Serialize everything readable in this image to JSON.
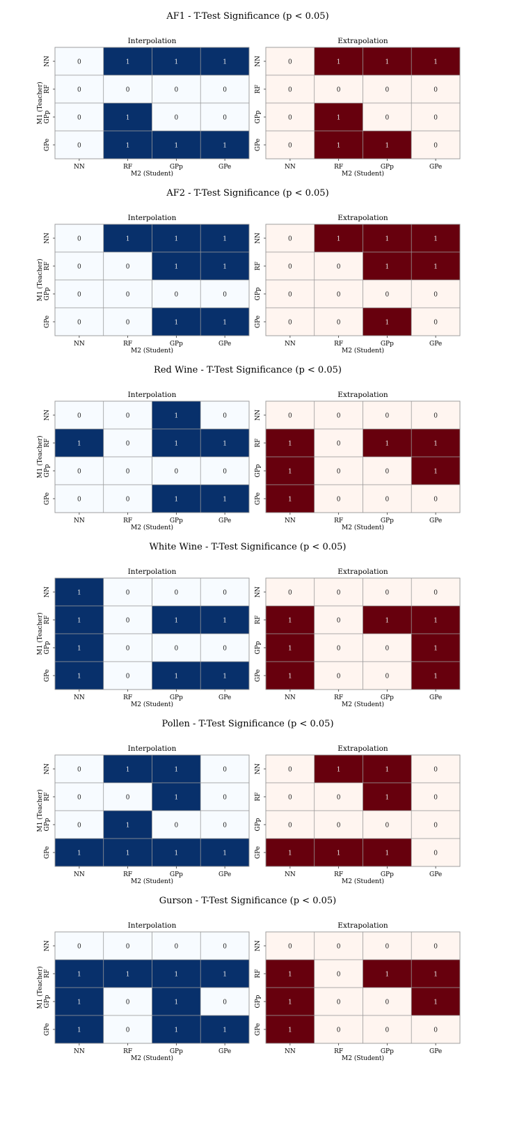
{
  "chart_data": [
    {
      "type": "heatmap",
      "title": "AF1 - T-Test Significance (p < 0.05)",
      "xlabel": "M2 (Student)",
      "ylabel": "M1 (Teacher)",
      "categories": [
        "NN",
        "RF",
        "GPp",
        "GPe"
      ],
      "panels": [
        {
          "title": "Interpolation",
          "colormap": "Blues",
          "values": [
            [
              0,
              1,
              1,
              1
            ],
            [
              0,
              0,
              0,
              0
            ],
            [
              0,
              1,
              0,
              0
            ],
            [
              0,
              1,
              1,
              1
            ]
          ]
        },
        {
          "title": "Extrapolation",
          "colormap": "Reds",
          "values": [
            [
              0,
              1,
              1,
              1
            ],
            [
              0,
              0,
              0,
              0
            ],
            [
              0,
              1,
              0,
              0
            ],
            [
              0,
              1,
              1,
              0
            ]
          ]
        }
      ]
    },
    {
      "type": "heatmap",
      "title": "AF2 - T-Test Significance (p < 0.05)",
      "xlabel": "M2 (Student)",
      "ylabel": "M1 (Teacher)",
      "categories": [
        "NN",
        "RF",
        "GPp",
        "GPe"
      ],
      "panels": [
        {
          "title": "Interpolation",
          "colormap": "Blues",
          "values": [
            [
              0,
              1,
              1,
              1
            ],
            [
              0,
              0,
              1,
              1
            ],
            [
              0,
              0,
              0,
              0
            ],
            [
              0,
              0,
              1,
              1
            ]
          ]
        },
        {
          "title": "Extrapolation",
          "colormap": "Reds",
          "values": [
            [
              0,
              1,
              1,
              1
            ],
            [
              0,
              0,
              1,
              1
            ],
            [
              0,
              0,
              0,
              0
            ],
            [
              0,
              0,
              1,
              0
            ]
          ]
        }
      ]
    },
    {
      "type": "heatmap",
      "title": "Red Wine - T-Test Significance (p < 0.05)",
      "xlabel": "M2 (Student)",
      "ylabel": "M1 (Teacher)",
      "categories": [
        "NN",
        "RF",
        "GPp",
        "GPe"
      ],
      "panels": [
        {
          "title": "Interpolation",
          "colormap": "Blues",
          "values": [
            [
              0,
              0,
              1,
              0
            ],
            [
              1,
              0,
              1,
              1
            ],
            [
              0,
              0,
              0,
              0
            ],
            [
              0,
              0,
              1,
              1
            ]
          ]
        },
        {
          "title": "Extrapolation",
          "colormap": "Reds",
          "values": [
            [
              0,
              0,
              0,
              0
            ],
            [
              1,
              0,
              1,
              1
            ],
            [
              1,
              0,
              0,
              1
            ],
            [
              1,
              0,
              0,
              0
            ]
          ]
        }
      ]
    },
    {
      "type": "heatmap",
      "title": "White Wine - T-Test Significance (p < 0.05)",
      "xlabel": "M2 (Student)",
      "ylabel": "M1 (Teacher)",
      "categories": [
        "NN",
        "RF",
        "GPp",
        "GPe"
      ],
      "panels": [
        {
          "title": "Interpolation",
          "colormap": "Blues",
          "values": [
            [
              1,
              0,
              0,
              0
            ],
            [
              1,
              0,
              1,
              1
            ],
            [
              1,
              0,
              0,
              0
            ],
            [
              1,
              0,
              1,
              1
            ]
          ]
        },
        {
          "title": "Extrapolation",
          "colormap": "Reds",
          "values": [
            [
              0,
              0,
              0,
              0
            ],
            [
              1,
              0,
              1,
              1
            ],
            [
              1,
              0,
              0,
              1
            ],
            [
              1,
              0,
              0,
              1
            ]
          ]
        }
      ]
    },
    {
      "type": "heatmap",
      "title": "Pollen - T-Test Significance (p < 0.05)",
      "xlabel": "M2 (Student)",
      "ylabel": "M1 (Teacher)",
      "categories": [
        "NN",
        "RF",
        "GPp",
        "GPe"
      ],
      "panels": [
        {
          "title": "Interpolation",
          "colormap": "Blues",
          "values": [
            [
              0,
              1,
              1,
              0
            ],
            [
              0,
              0,
              1,
              0
            ],
            [
              0,
              1,
              0,
              0
            ],
            [
              1,
              1,
              1,
              1
            ]
          ]
        },
        {
          "title": "Extrapolation",
          "colormap": "Reds",
          "values": [
            [
              0,
              1,
              1,
              0
            ],
            [
              0,
              0,
              1,
              0
            ],
            [
              0,
              0,
              0,
              0
            ],
            [
              1,
              1,
              1,
              0
            ]
          ]
        }
      ]
    },
    {
      "type": "heatmap",
      "title": "Gurson - T-Test Significance (p < 0.05)",
      "xlabel": "M2 (Student)",
      "ylabel": "M1 (Teacher)",
      "categories": [
        "NN",
        "RF",
        "GPp",
        "GPe"
      ],
      "panels": [
        {
          "title": "Interpolation",
          "colormap": "Blues",
          "values": [
            [
              0,
              0,
              0,
              0
            ],
            [
              1,
              1,
              1,
              1
            ],
            [
              1,
              0,
              1,
              0
            ],
            [
              1,
              0,
              1,
              1
            ]
          ]
        },
        {
          "title": "Extrapolation",
          "colormap": "Reds",
          "values": [
            [
              0,
              0,
              0,
              0
            ],
            [
              1,
              0,
              1,
              1
            ],
            [
              1,
              0,
              0,
              1
            ],
            [
              1,
              0,
              0,
              0
            ]
          ]
        }
      ]
    }
  ],
  "colors": {
    "Blues": {
      "low": "#f7fbff",
      "high": "#08306b"
    },
    "Reds": {
      "low": "#fff5f0",
      "high": "#67000d"
    },
    "grid": "#999999"
  }
}
